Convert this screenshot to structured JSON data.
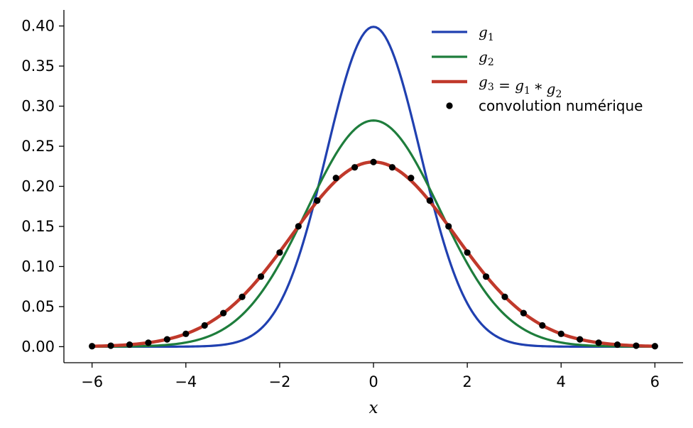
{
  "chart_data": {
    "type": "line",
    "title": "",
    "xlabel": "x",
    "ylabel": "",
    "xlim": [
      -6.6,
      6.6
    ],
    "ylim": [
      -0.02,
      0.42
    ],
    "x_ticks": [
      -6,
      -4,
      -2,
      0,
      2,
      4,
      6
    ],
    "x_tick_labels": [
      "−6",
      "−4",
      "−2",
      "0",
      "2",
      "4",
      "6"
    ],
    "y_ticks": [
      0.0,
      0.05,
      0.1,
      0.15,
      0.2,
      0.25,
      0.3,
      0.35,
      0.4
    ],
    "y_tick_labels": [
      "0.00",
      "0.05",
      "0.10",
      "0.15",
      "0.20",
      "0.25",
      "0.30",
      "0.35",
      "0.40"
    ],
    "grid": false,
    "legend_position": "top-right",
    "series": [
      {
        "kind": "curve",
        "legend_label": "g1",
        "legend_parts": [
          {
            "t": "g",
            "sub": "1"
          }
        ],
        "color": "#2040b0",
        "curve": "gaussian",
        "mean": 0,
        "sigma": 1.0,
        "samples": 241
      },
      {
        "kind": "curve",
        "legend_label": "g2",
        "legend_parts": [
          {
            "t": "g",
            "sub": "2"
          }
        ],
        "color": "#1e7d3c",
        "curve": "gaussian",
        "mean": 0,
        "sigma": 1.414,
        "samples": 241
      },
      {
        "kind": "curve",
        "legend_label": "g3 = g1 * g2",
        "legend_parts": [
          {
            "t": "g",
            "sub": "3"
          },
          {
            "t": " = ",
            "plain": true
          },
          {
            "t": "g",
            "sub": "1"
          },
          {
            "t": " * ",
            "plain": true
          },
          {
            "t": "g",
            "sub": "2"
          }
        ],
        "color": "#c0392b",
        "curve": "gaussian",
        "mean": 0,
        "sigma": 1.732,
        "samples": 241
      },
      {
        "kind": "points",
        "legend_label": "convolution numérique",
        "color": "#000000",
        "x": [
          -6.0,
          -5.6,
          -5.2,
          -4.8,
          -4.4,
          -4.0,
          -3.6,
          -3.2,
          -2.8,
          -2.4,
          -2.0,
          -1.6,
          -1.2,
          -0.8,
          -0.4,
          0.0,
          0.4,
          0.8,
          1.2,
          1.6,
          2.0,
          2.4,
          2.8,
          3.2,
          3.6,
          4.0,
          4.4,
          4.8,
          5.2,
          5.6,
          6.0
        ],
        "y": [
          0.0006,
          0.0012,
          0.0025,
          0.0049,
          0.0091,
          0.016,
          0.0265,
          0.0419,
          0.0621,
          0.0874,
          0.1174,
          0.1501,
          0.1822,
          0.2104,
          0.2237,
          0.2303,
          0.2237,
          0.2104,
          0.1822,
          0.1501,
          0.1174,
          0.0874,
          0.0621,
          0.0419,
          0.0265,
          0.016,
          0.0091,
          0.0049,
          0.0025,
          0.0012,
          0.0006
        ]
      }
    ]
  }
}
